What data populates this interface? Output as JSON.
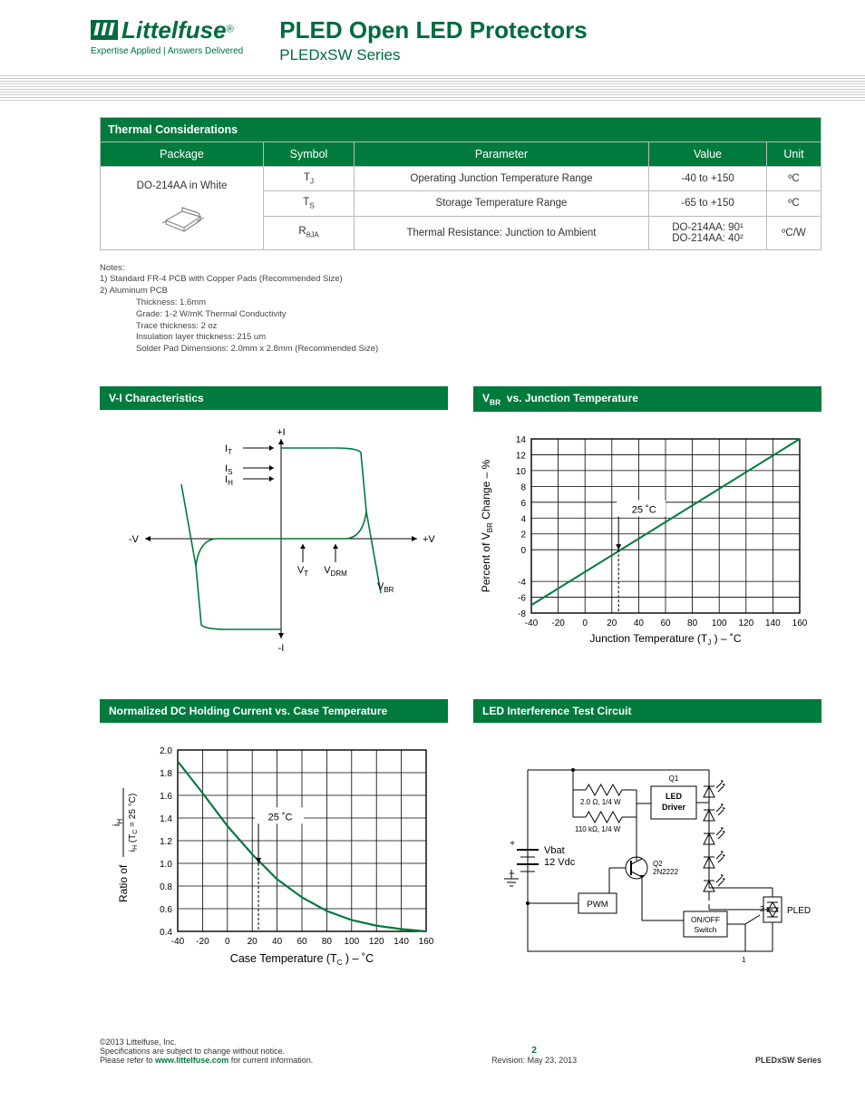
{
  "header": {
    "brand": "Littelfuse",
    "tagline": "Expertise Applied | Answers Delivered",
    "title": "PLED Open LED Protectors",
    "series": "PLEDxSW Series"
  },
  "thermal": {
    "section_title": "Thermal Considerations",
    "headers": [
      "Package",
      "Symbol",
      "Parameter",
      "Value",
      "Unit"
    ],
    "package_label": "DO-214AA in White",
    "rows": [
      {
        "symbol_base": "T",
        "symbol_sub": "J",
        "param": "Operating Junction Temperature Range",
        "value": "-40 to +150",
        "unit": "ºC"
      },
      {
        "symbol_base": "T",
        "symbol_sub": "S",
        "param": "Storage Temperature Range",
        "value": "-65 to +150",
        "unit": "ºC"
      },
      {
        "symbol_base": "R",
        "symbol_sub": "θJA",
        "param": "Thermal Resistance: Junction to Ambient",
        "value": "DO-214AA:  90¹\nDO-214AA:  40²",
        "unit": "ºC/W"
      }
    ]
  },
  "notes": {
    "label": "Notes:",
    "n1": "1) Standard FR-4 PCB with Copper Pads (Recommended Size)",
    "n2": "2) Aluminum PCB",
    "d1": "Thickness: 1.6mm",
    "d2": "Grade: 1-2 W/mK Thermal Conductivity",
    "d3": "Trace thickness: 2 oz",
    "d4": "Insulation layer thickness: 215 um",
    "d5": "Solder Pad Dimensions:     2.0mm x 2.8mm (Recommended Size)"
  },
  "chart_vi": {
    "title": "V-I Characteristics",
    "labels": {
      "posI": "+I",
      "negI": "-I",
      "posV": "+V",
      "negV": "-V",
      "IT": "I_T",
      "IS": "I_S",
      "IH": "I_H",
      "VT": "V_T",
      "VDRM": "V_DRM",
      "VBR": "V_BR"
    },
    "axis_color": "#000",
    "curve_color": "#007a3d"
  },
  "chart_vbr": {
    "title": "V_BR  vs. Junction Temperature",
    "x_label": "Junction  Temperature (T_J ) – ˚C",
    "y_label": "Percent of V_BR Change – %",
    "x_min": -40,
    "x_max": 160,
    "x_step": 20,
    "y_ticks": [
      -8,
      -6,
      -4,
      0,
      2,
      4,
      6,
      8,
      10,
      12,
      14
    ],
    "marker_label": "25 ˚C",
    "line_color": "#007a3d",
    "grid_color": "#000",
    "data_start": {
      "x": -40,
      "y": -7
    },
    "data_end": {
      "x": 160,
      "y": 14
    }
  },
  "chart_ih": {
    "title": "Normalized DC Holding Current vs. Case Temperature",
    "x_label": "Case Temperature (T_C ) – ˚C",
    "y_label_top": "i_H",
    "y_label_bot": "i_H (T_C = 25 °C)",
    "y_label_prefix": "Ratio of",
    "x_min": -40,
    "x_max": 160,
    "x_step": 20,
    "y_ticks": [
      0.4,
      0.6,
      0.8,
      1.0,
      1.2,
      1.4,
      1.6,
      1.8,
      2.0
    ],
    "marker_label": "25 ˚C",
    "line_color": "#007a3d",
    "grid_color": "#000",
    "points": [
      [
        -40,
        1.9
      ],
      [
        -20,
        1.62
      ],
      [
        0,
        1.33
      ],
      [
        20,
        1.08
      ],
      [
        40,
        0.86
      ],
      [
        60,
        0.7
      ],
      [
        80,
        0.58
      ],
      [
        100,
        0.5
      ],
      [
        120,
        0.45
      ],
      [
        140,
        0.42
      ],
      [
        160,
        0.4
      ]
    ]
  },
  "chart_circuit": {
    "title": "LED Interference Test Circuit",
    "labels": {
      "q1": "Q1",
      "driver": "LED\nDriver",
      "r1": "2.0 Ω, 1/4 W",
      "r2": "110 kΩ, 1/4 W",
      "vbat": "Vbat",
      "vbat_v": "12 Vdc",
      "q2": "Q2\n2N2222",
      "pwm": "PWM",
      "switch": "ON/OFF\nSwitch",
      "pled": "PLED"
    }
  },
  "footer": {
    "copyright": "©2013 Littelfuse, Inc.",
    "disclaimer": "Specifications are subject to change without notice.",
    "refer_pre": "Please refer to ",
    "refer_link": "www.littelfuse.com",
    "refer_post": " for current information.",
    "page": "2",
    "revision": "Revision: May 23, 2013",
    "series": "PLEDxSW Series"
  }
}
